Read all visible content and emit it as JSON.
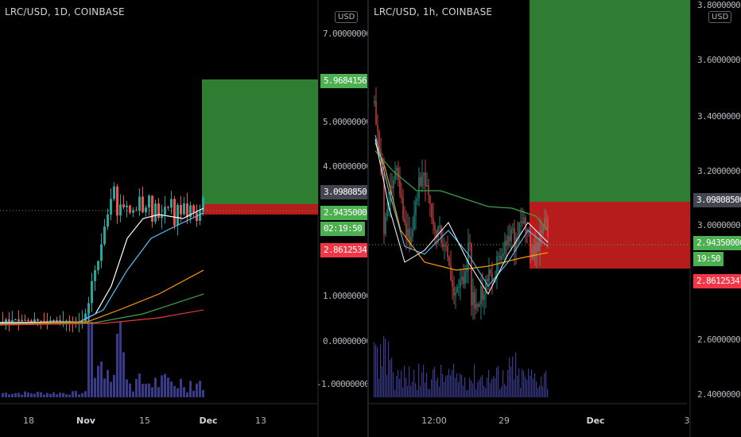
{
  "colors": {
    "bg": "#000000",
    "up": "#26a69a",
    "down": "#ef5350",
    "profit": "#2e7d32",
    "loss": "#b71c1c",
    "ema_white": "#ffffff",
    "ema_blue": "#4fc3f7",
    "ema_orange": "#ff9800",
    "ema_green": "#43a047",
    "ema_red": "#e53935",
    "volume": "#3a3a8c"
  },
  "icons": {
    "currency_button": "usd-badge"
  },
  "left_chart": {
    "title": "LRC/USD, 1D, COINBASE",
    "currency": "USD",
    "y_ticks": [
      "7.00000000",
      "5.00000000",
      "4.00000000",
      "1.00000000",
      "0.00000000",
      "-1.00000000"
    ],
    "x_ticks": [
      {
        "label": "18",
        "bold": false
      },
      {
        "label": "Nov",
        "bold": true
      },
      {
        "label": "15",
        "bold": false
      },
      {
        "label": "Dec",
        "bold": true
      },
      {
        "label": "13",
        "bold": false
      }
    ],
    "price_tags": {
      "target": "5.96841567",
      "entry": "3.09808500",
      "last_price": "2.94350000",
      "countdown": "02:19:50",
      "stop": "2.86125347"
    }
  },
  "right_chart": {
    "title": "LRC/USD, 1h, COINBASE",
    "currency": "USD",
    "y_ticks": [
      "3.80000000",
      "3.60000000",
      "3.40000000",
      "3.20000000",
      "3.00000000",
      "2.60000000",
      "2.40000000"
    ],
    "x_ticks": [
      {
        "label": "12:00",
        "bold": false
      },
      {
        "label": "29",
        "bold": false
      },
      {
        "label": "Dec",
        "bold": true
      },
      {
        "label": "3",
        "bold": false
      }
    ],
    "price_tags": {
      "entry": "3.09808500",
      "last_price": "2.94350000",
      "countdown": "19:50",
      "stop": "2.86125347"
    }
  }
}
